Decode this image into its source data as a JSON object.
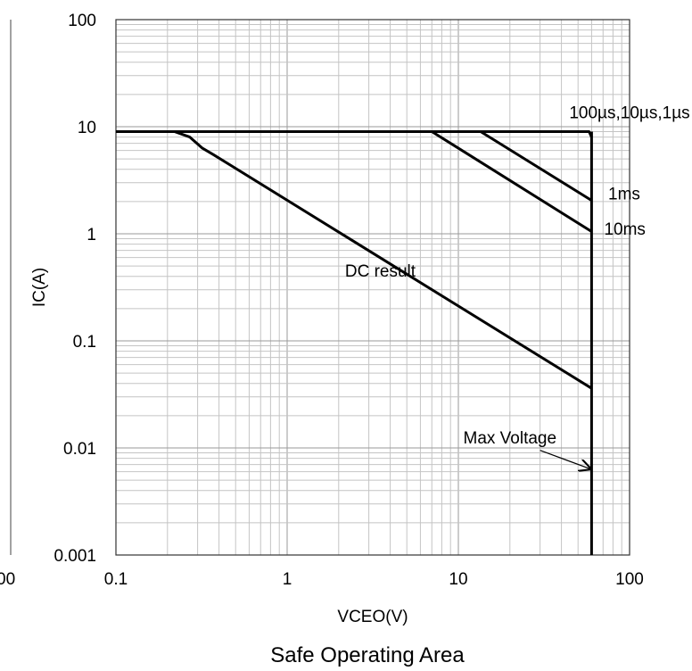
{
  "chart_data": {
    "type": "line",
    "title": "Safe Operating Area",
    "xlabel": "VCEO(V)",
    "ylabel": "IC(A)",
    "x_scale": "log",
    "y_scale": "log",
    "xlim": [
      0.1,
      100
    ],
    "ylim": [
      0.001,
      100
    ],
    "grid": "major and minor",
    "x_ticks": [
      {
        "value": 0.1,
        "label": "0.1"
      },
      {
        "value": 1,
        "label": "1"
      },
      {
        "value": 10,
        "label": "10"
      },
      {
        "value": 100,
        "label": "100"
      }
    ],
    "y_ticks": [
      {
        "value": 0.001,
        "label": "0.001"
      },
      {
        "value": 0.01,
        "label": "0.01"
      },
      {
        "value": 0.1,
        "label": "0.1"
      },
      {
        "value": 1,
        "label": "1"
      },
      {
        "value": 10,
        "label": "10"
      },
      {
        "value": 100,
        "label": "100"
      }
    ],
    "series": [
      {
        "name": "DC result",
        "color": "#000000",
        "points": [
          [
            0.1,
            9
          ],
          [
            0.22,
            9
          ],
          [
            0.27,
            8
          ],
          [
            0.32,
            6.3
          ],
          [
            0.37,
            5.5
          ],
          [
            60,
            0.036
          ]
        ]
      },
      {
        "name": "10ms",
        "color": "#000000",
        "points": [
          [
            0.1,
            9
          ],
          [
            7,
            9
          ],
          [
            60,
            1.05
          ]
        ]
      },
      {
        "name": "1ms",
        "color": "#000000",
        "points": [
          [
            0.1,
            9
          ],
          [
            13.5,
            9
          ],
          [
            60,
            2.05
          ]
        ]
      },
      {
        "name": "100µs,10µs,1µs",
        "color": "#000000",
        "points": [
          [
            0.1,
            9
          ],
          [
            58,
            9
          ],
          [
            60,
            8
          ]
        ]
      },
      {
        "name": "Max Voltage",
        "color": "#000000",
        "points": [
          [
            60,
            9
          ],
          [
            60,
            0.001
          ]
        ]
      }
    ],
    "annotations": [
      {
        "text": "100µs,10µs,1µs",
        "x": 100,
        "y": 12,
        "anchor": "middle"
      },
      {
        "text": "1ms",
        "x": 75,
        "y": 2.1,
        "anchor": "start"
      },
      {
        "text": "10ms",
        "x": 71,
        "y": 0.98,
        "anchor": "start"
      },
      {
        "text": "DC result",
        "x": 3.5,
        "y": 0.4,
        "anchor": "middle"
      },
      {
        "text": "Max Voltage",
        "x": 20,
        "y": 0.011,
        "anchor": "middle"
      }
    ],
    "arrow": {
      "from": [
        30,
        0.0095
      ],
      "to": [
        60,
        0.0063
      ],
      "label": "Max Voltage"
    },
    "left_clipped_tick_label": "00"
  }
}
